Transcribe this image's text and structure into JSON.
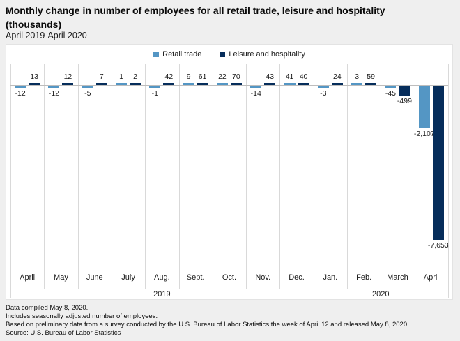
{
  "title": {
    "line1": "Monthly change in number of employees for all retail trade, leisure and hospitality",
    "line2": "(thousands)",
    "subtitle": "April 2019-April 2020"
  },
  "legend": [
    {
      "label": "Retail trade",
      "color": "#5496c4",
      "icon": "square-swatch"
    },
    {
      "label": "Leisure and hospitality",
      "color": "#062d5b",
      "icon": "square-swatch"
    }
  ],
  "chart_data": {
    "type": "bar",
    "title": "Monthly change in number of employees for all retail trade, leisure and hospitality (thousands)",
    "subtitle": "April 2019-April 2020",
    "categories": [
      "April",
      "May",
      "June",
      "July",
      "Aug.",
      "Sept.",
      "Oct.",
      "Nov.",
      "Dec.",
      "Jan.",
      "Feb.",
      "March",
      "April"
    ],
    "year_groups": [
      {
        "label": "2019",
        "start": 0,
        "end": 8
      },
      {
        "label": "2020",
        "start": 9,
        "end": 12
      }
    ],
    "series": [
      {
        "name": "Retail trade",
        "color": "#5496c4",
        "values": [
          -12,
          -12,
          -5,
          1,
          -1,
          9,
          22,
          -14,
          41,
          -3,
          3,
          -45,
          -2107
        ]
      },
      {
        "name": "Leisure and hospitality",
        "color": "#062d5b",
        "values": [
          13,
          12,
          7,
          2,
          42,
          61,
          70,
          43,
          40,
          24,
          59,
          -499,
          -7653
        ]
      }
    ],
    "value_labels": true,
    "grid": false,
    "legend_position": "top",
    "ylim": [
      -7653,
      70
    ],
    "xlabel": "",
    "ylabel": ""
  },
  "footer": {
    "lines": [
      "Data compiled May 8, 2020.",
      "Includes seasonally adjusted number of employees.",
      "Based on preliminary data from a survey conducted by the U.S. Bureau of Labor Statistics the week of April 12 and released May 8, 2020.",
      "Source: U.S. Bureau of Labor Statistics"
    ]
  },
  "colors": {
    "page_background": "#efefef",
    "panel_background": "#ffffff",
    "separator": "#d9d9d9",
    "baseline": "#bdbdbd",
    "label_text": "#1a1a1a"
  }
}
